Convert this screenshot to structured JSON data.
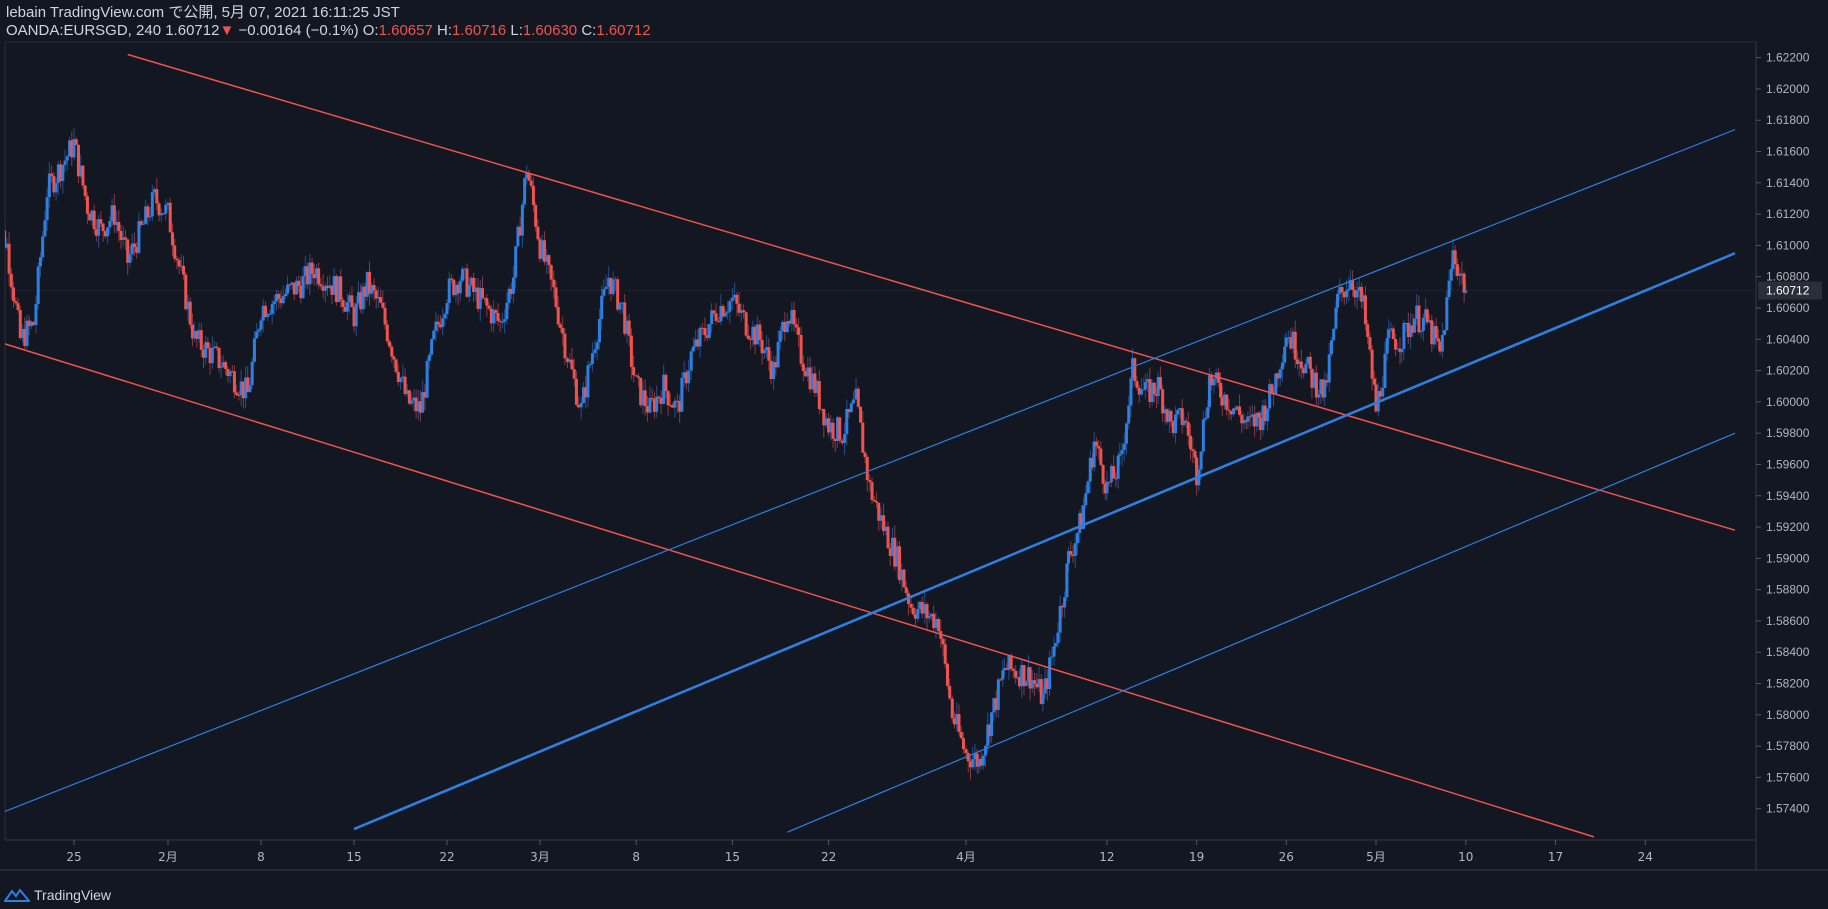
{
  "header": {
    "line1": "lebain TradingView.com で公開, 5月 07, 2021 16:11:25 JST",
    "symbol": "OANDA:EURSGD, 240",
    "last": "1.60712",
    "arrow": "▼",
    "change": "−0.00164 (−0.1%)",
    "o_label": "O:",
    "o_value": "1.60657",
    "h_label": "H:",
    "h_value": "1.60716",
    "l_label": "L:",
    "l_value": "1.60630",
    "c_label": "C:",
    "c_value": "1.60712"
  },
  "footer": {
    "brand": "TradingView",
    "logo_icon": "tradingview-logo-icon"
  },
  "colors": {
    "bg": "#131722",
    "up": "#2e7fe0",
    "down": "#ef5350",
    "channel_red": "#ef5350",
    "channel_blue": "#2e7fe0",
    "axis_text": "#b2b5be",
    "price_tag_bg": "#2a2e39"
  },
  "chart_data": {
    "type": "candlestick",
    "symbol": "OANDA:EURSGD",
    "timeframe": "240",
    "ylim": [
      1.572,
      1.623
    ],
    "yticks": [
      "1.62200",
      "1.62000",
      "1.61800",
      "1.61600",
      "1.61400",
      "1.61200",
      "1.61000",
      "1.60800",
      "1.60600",
      "1.60400",
      "1.60200",
      "1.60000",
      "1.59800",
      "1.59600",
      "1.59400",
      "1.59200",
      "1.59000",
      "1.58800",
      "1.58600",
      "1.58400",
      "1.58200",
      "1.58000",
      "1.57800",
      "1.57600",
      "1.57400"
    ],
    "current_price_label": "1.60712",
    "xticks": [
      {
        "label": "25",
        "date": "2021-01-25"
      },
      {
        "label": "2月",
        "date": "2021-02-01"
      },
      {
        "label": "8",
        "date": "2021-02-08"
      },
      {
        "label": "15",
        "date": "2021-02-15"
      },
      {
        "label": "22",
        "date": "2021-02-22"
      },
      {
        "label": "3月",
        "date": "2021-03-01"
      },
      {
        "label": "8",
        "date": "2021-03-08"
      },
      {
        "label": "15",
        "date": "2021-03-15"
      },
      {
        "label": "22",
        "date": "2021-03-22"
      },
      {
        "label": "4月",
        "date": "2021-04-01"
      },
      {
        "label": "12",
        "date": "2021-04-12"
      },
      {
        "label": "19",
        "date": "2021-04-19"
      },
      {
        "label": "26",
        "date": "2021-04-26"
      },
      {
        "label": "5月",
        "date": "2021-05-03"
      },
      {
        "label": "10",
        "date": "2021-05-10"
      },
      {
        "label": "17",
        "date": "2021-05-17"
      },
      {
        "label": "24",
        "date": "2021-05-24"
      }
    ],
    "close_path": [
      [
        "2021-01-19",
        1.612
      ],
      [
        "2021-01-20",
        1.61
      ],
      [
        "2021-01-21",
        1.604
      ],
      [
        "2021-01-22",
        1.605
      ],
      [
        "2021-01-23",
        1.6135
      ],
      [
        "2021-01-25",
        1.6165
      ],
      [
        "2021-01-26",
        1.6125
      ],
      [
        "2021-01-27",
        1.611
      ],
      [
        "2021-01-28",
        1.612
      ],
      [
        "2021-01-29",
        1.609
      ],
      [
        "2021-01-31",
        1.613
      ],
      [
        "2021-02-01",
        1.612
      ],
      [
        "2021-02-02",
        1.608
      ],
      [
        "2021-02-03",
        1.604
      ],
      [
        "2021-02-05",
        1.6025
      ],
      [
        "2021-02-07",
        1.6005
      ],
      [
        "2021-02-08",
        1.606
      ],
      [
        "2021-02-09",
        1.6065
      ],
      [
        "2021-02-11",
        1.6075
      ],
      [
        "2021-02-12",
        1.6085
      ],
      [
        "2021-02-14",
        1.607
      ],
      [
        "2021-02-15",
        1.6055
      ],
      [
        "2021-02-16",
        1.6075
      ],
      [
        "2021-02-17",
        1.606
      ],
      [
        "2021-02-19",
        1.6
      ],
      [
        "2021-02-20",
        1.5995
      ],
      [
        "2021-02-21",
        1.604
      ],
      [
        "2021-02-22",
        1.607
      ],
      [
        "2021-02-23",
        1.608
      ],
      [
        "2021-02-25",
        1.606
      ],
      [
        "2021-02-26",
        1.605
      ],
      [
        "2021-02-27",
        1.608
      ],
      [
        "2021-02-28",
        1.615
      ],
      [
        "2021-03-01",
        1.61
      ],
      [
        "2021-03-02",
        1.607
      ],
      [
        "2021-03-03",
        1.603
      ],
      [
        "2021-03-04",
        1.5995
      ],
      [
        "2021-03-05",
        1.604
      ],
      [
        "2021-03-06",
        1.608
      ],
      [
        "2021-03-07",
        1.606
      ],
      [
        "2021-03-08",
        1.601
      ],
      [
        "2021-03-09",
        1.5995
      ],
      [
        "2021-03-10",
        1.601
      ],
      [
        "2021-03-11",
        1.5995
      ],
      [
        "2021-03-12",
        1.603
      ],
      [
        "2021-03-14",
        1.606
      ],
      [
        "2021-03-15",
        1.6065
      ],
      [
        "2021-03-16",
        1.605
      ],
      [
        "2021-03-17",
        1.604
      ],
      [
        "2021-03-18",
        1.602
      ],
      [
        "2021-03-19",
        1.606
      ],
      [
        "2021-03-20",
        1.603
      ],
      [
        "2021-03-21",
        1.601
      ],
      [
        "2021-03-22",
        1.5985
      ],
      [
        "2021-03-23",
        1.598
      ],
      [
        "2021-03-24",
        1.6
      ],
      [
        "2021-03-25",
        1.5945
      ],
      [
        "2021-03-26",
        1.592
      ],
      [
        "2021-03-27",
        1.59
      ],
      [
        "2021-03-28",
        1.587
      ],
      [
        "2021-03-29",
        1.5865
      ],
      [
        "2021-03-30",
        1.586
      ],
      [
        "2021-03-31",
        1.58
      ],
      [
        "2021-04-01",
        1.5775
      ],
      [
        "2021-04-02",
        1.577
      ],
      [
        "2021-04-03",
        1.58
      ],
      [
        "2021-04-04",
        1.583
      ],
      [
        "2021-04-06",
        1.5825
      ],
      [
        "2021-04-07",
        1.581
      ],
      [
        "2021-04-08",
        1.585
      ],
      [
        "2021-04-09",
        1.59
      ],
      [
        "2021-04-10",
        1.5925
      ],
      [
        "2021-04-11",
        1.5975
      ],
      [
        "2021-04-12",
        1.5945
      ],
      [
        "2021-04-13",
        1.596
      ],
      [
        "2021-04-14",
        1.602
      ],
      [
        "2021-04-15",
        1.6005
      ],
      [
        "2021-04-16",
        1.601
      ],
      [
        "2021-04-17",
        1.5985
      ],
      [
        "2021-04-18",
        1.599
      ],
      [
        "2021-04-19",
        1.5955
      ],
      [
        "2021-04-20",
        1.6015
      ],
      [
        "2021-04-21",
        1.6005
      ],
      [
        "2021-04-22",
        1.5995
      ],
      [
        "2021-04-23",
        1.5985
      ],
      [
        "2021-04-24",
        1.599
      ],
      [
        "2021-04-25",
        1.601
      ],
      [
        "2021-04-26",
        1.6045
      ],
      [
        "2021-04-27",
        1.603
      ],
      [
        "2021-04-28",
        1.6015
      ],
      [
        "2021-04-29",
        1.6005
      ],
      [
        "2021-04-30",
        1.6065
      ],
      [
        "2021-05-01",
        1.608
      ],
      [
        "2021-05-02",
        1.606
      ],
      [
        "2021-05-03",
        1.5995
      ],
      [
        "2021-05-04",
        1.604
      ],
      [
        "2021-05-05",
        1.604
      ],
      [
        "2021-05-06",
        1.6055
      ],
      [
        "2021-05-07",
        1.605
      ],
      [
        "2021-05-08",
        1.603
      ],
      [
        "2021-05-09",
        1.6095
      ],
      [
        "2021-05-10",
        1.6071
      ]
    ],
    "trendlines": [
      {
        "name": "",
        "color": "red",
        "width": 1.5,
        "from": [
          "2021-01-29",
          1.6222
        ],
        "to": [
          "2021-05-31",
          1.5918
        ]
      },
      {
        "name": "",
        "color": "red",
        "width": 1.5,
        "from": [
          "2021-01-18",
          1.6042
        ],
        "to": [
          "2021-05-20",
          1.5722
        ]
      },
      {
        "name": "",
        "color": "blue",
        "width": 1.2,
        "from": [
          "2021-01-18",
          1.5732
        ],
        "to": [
          "2021-05-31",
          1.6174
        ]
      },
      {
        "name": "",
        "color": "blue",
        "width": 2.6,
        "from": [
          "2021-02-15",
          1.5727
        ],
        "to": [
          "2021-05-31",
          1.6095
        ]
      },
      {
        "name": "",
        "color": "blue",
        "width": 1.2,
        "from": [
          "2021-03-19",
          1.5725
        ],
        "to": [
          "2021-05-31",
          1.598
        ]
      }
    ]
  }
}
